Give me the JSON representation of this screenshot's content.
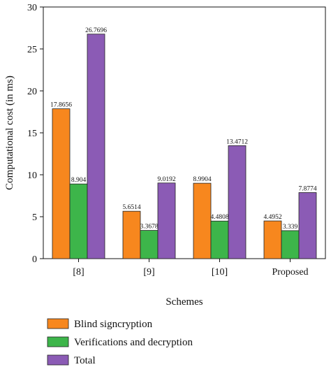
{
  "chart_data": {
    "type": "bar",
    "categories": [
      "[8]",
      "[9]",
      "[10]",
      "Proposed"
    ],
    "series": [
      {
        "name": "Blind signcryption",
        "color": "#f7871e",
        "values": [
          17.8656,
          5.6514,
          8.9904,
          4.4952
        ],
        "labels": [
          "17.8656",
          "5.6514",
          "8.9904",
          "4.4952"
        ]
      },
      {
        "name": "Verifications and decryption",
        "color": "#3db54a",
        "values": [
          8.904,
          3.3678,
          4.4808,
          3.339
        ],
        "labels": [
          "8.904",
          "3.3678",
          "4.4808",
          "3.339"
        ]
      },
      {
        "name": "Total",
        "color": "#8b5bb5",
        "values": [
          26.7696,
          9.0192,
          13.4712,
          7.8774
        ],
        "labels": [
          "26.7696",
          "9.0192",
          "13.4712",
          "7.8774"
        ]
      }
    ],
    "title": "",
    "xlabel": "Schemes",
    "ylabel": "Computational cost (in ms)",
    "ylim": [
      0,
      30
    ],
    "yticks": [
      "0",
      "5",
      "10",
      "15",
      "20",
      "25",
      "30"
    ],
    "grid": false,
    "legend_position": "bottom"
  }
}
